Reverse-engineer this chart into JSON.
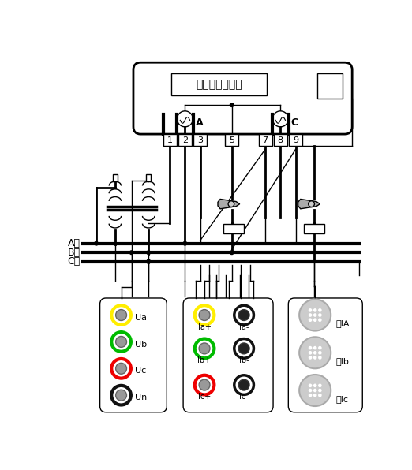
{
  "bg": "#FFFFFF",
  "lc": "#000000",
  "meter_label": "三相三线电能表",
  "phase_labels": [
    "A相",
    "B相",
    "C相"
  ],
  "v_labels": [
    "Ua",
    "Ub",
    "Uc",
    "Un"
  ],
  "v_colors": [
    "#FFEE00",
    "#00BB00",
    "#EE0000",
    "#111111"
  ],
  "il_labels": [
    "Ia+",
    "Ib+",
    "Ic+"
  ],
  "ir_labels": [
    "Ia-",
    "Ib-",
    "Ic-"
  ],
  "il_colors": [
    "#FFEE00",
    "#00BB00",
    "#EE0000"
  ],
  "r_labels": [
    "鈕IA",
    "鈕Ib",
    "鈕Ic"
  ],
  "ct_labels": [
    "A",
    "C"
  ],
  "term_labels": [
    "1",
    "2",
    "3",
    "5",
    "7",
    "8",
    "9"
  ]
}
